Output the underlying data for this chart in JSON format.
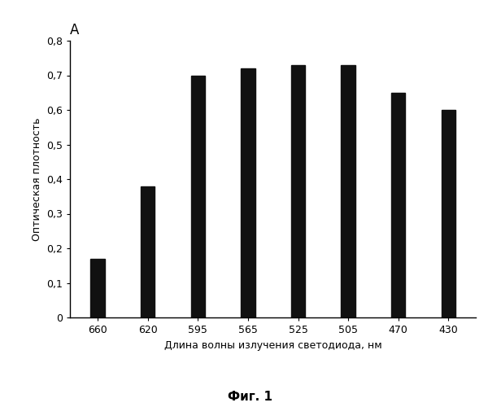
{
  "categories": [
    "660",
    "620",
    "595",
    "565",
    "525",
    "505",
    "470",
    "430"
  ],
  "values": [
    0.17,
    0.38,
    0.7,
    0.72,
    0.73,
    0.73,
    0.65,
    0.6
  ],
  "bar_color": "#111111",
  "title": "А",
  "ylabel": "Оптическая плотность",
  "xlabel": "Длина волны излучения светодиода, нм",
  "caption": "Фиг. 1",
  "ylim": [
    0,
    0.8
  ],
  "yticks": [
    0,
    0.1,
    0.2,
    0.3,
    0.4,
    0.5,
    0.6,
    0.7,
    0.8
  ],
  "ytick_labels": [
    "0",
    "0,1",
    "0,2",
    "0,3",
    "0,4",
    "0,5",
    "0,6",
    "0,7",
    "0,8"
  ],
  "background_color": "#ffffff",
  "bar_width": 0.28,
  "figsize": [
    6.16,
    5.0
  ],
  "dpi": 100
}
